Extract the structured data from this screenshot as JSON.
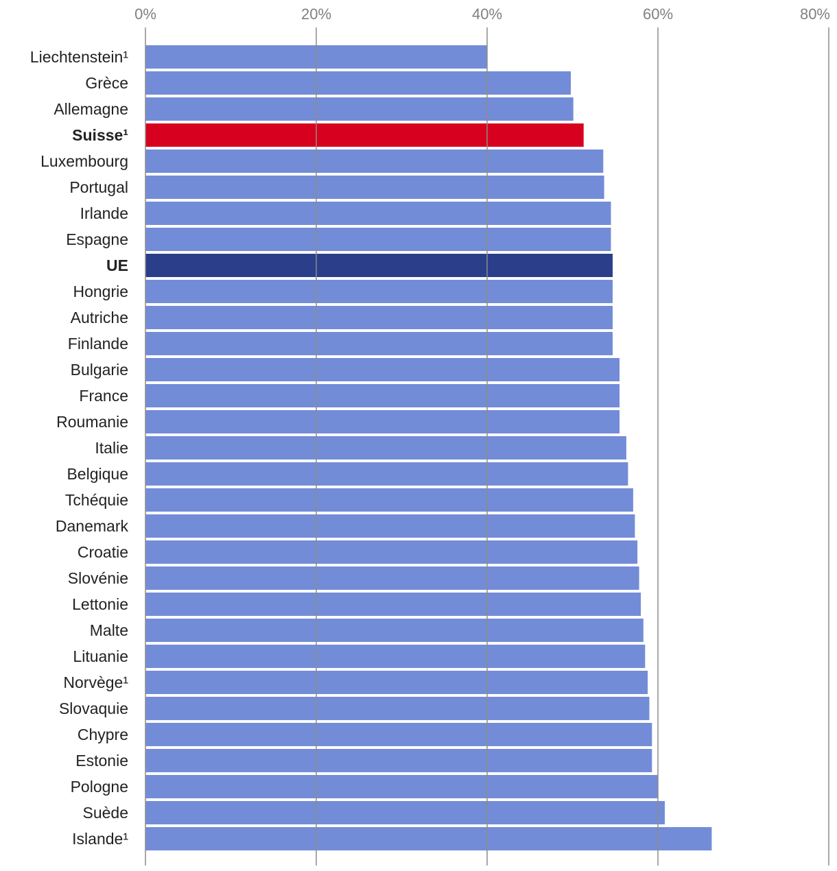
{
  "chart_data": {
    "type": "bar",
    "orientation": "horizontal",
    "title": "",
    "xlabel": "",
    "ylabel": "",
    "xlim": [
      0,
      80
    ],
    "ticks": [
      0,
      20,
      40,
      60,
      80
    ],
    "tick_labels": [
      "0%",
      "20%",
      "40%",
      "60%",
      "80%"
    ],
    "grid": true,
    "colors": {
      "default": "#738cd7",
      "switzerland": "#d7001e",
      "eu": "#2a3e8a"
    },
    "categories": [
      "Liechtenstein¹",
      "Grèce",
      "Allemagne",
      "Suisse¹",
      "Luxembourg",
      "Portugal",
      "Irlande",
      "Espagne",
      "UE",
      "Hongrie",
      "Autriche",
      "Finlande",
      "Bulgarie",
      "France",
      "Roumanie",
      "Italie",
      "Belgique",
      "Tchéquie",
      "Danemark",
      "Croatie",
      "Slovénie",
      "Lettonie",
      "Malte",
      "Lituanie",
      "Norvège¹",
      "Slovaquie",
      "Chypre",
      "Estonie",
      "Pologne",
      "Suède",
      "Islande¹"
    ],
    "values": [
      40.0,
      49.8,
      50.1,
      51.3,
      53.6,
      53.7,
      54.5,
      54.5,
      54.7,
      54.7,
      54.7,
      54.7,
      55.5,
      55.5,
      55.5,
      56.3,
      56.5,
      57.1,
      57.3,
      57.6,
      57.8,
      58.0,
      58.3,
      58.5,
      58.8,
      59.0,
      59.3,
      59.3,
      60.0,
      60.8,
      66.3
    ],
    "highlight": {
      "Suisse¹": "switzerland",
      "UE": "eu"
    },
    "bold_labels": [
      "Suisse¹",
      "UE"
    ]
  }
}
